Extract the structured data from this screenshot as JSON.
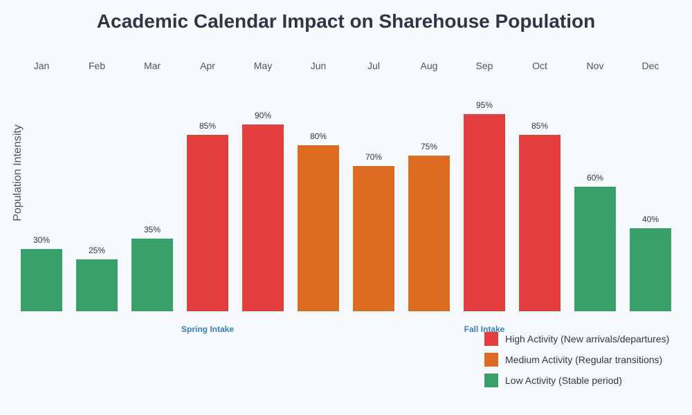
{
  "chart_data": {
    "type": "bar",
    "title": "Academic Calendar Impact on Sharehouse Population",
    "ylabel": "Population Intensity",
    "xlabel": "",
    "ylim": [
      0,
      100
    ],
    "categories": [
      "Jan",
      "Feb",
      "Mar",
      "Apr",
      "May",
      "Jun",
      "Jul",
      "Aug",
      "Sep",
      "Oct",
      "Nov",
      "Dec"
    ],
    "values": [
      30,
      25,
      35,
      85,
      90,
      80,
      70,
      75,
      95,
      85,
      60,
      40
    ],
    "value_labels": [
      "30%",
      "25%",
      "35%",
      "85%",
      "90%",
      "80%",
      "70%",
      "75%",
      "95%",
      "85%",
      "60%",
      "40%"
    ],
    "levels": [
      "low",
      "low",
      "low",
      "high",
      "high",
      "medium",
      "medium",
      "medium",
      "high",
      "high",
      "low",
      "low"
    ],
    "colors": {
      "high": "#e53e3e",
      "medium": "#dd6b20",
      "low": "#38a169"
    },
    "annotations": [
      {
        "text": "Spring Intake",
        "category": "Apr"
      },
      {
        "text": "Fall Intake",
        "category": "Sep"
      }
    ],
    "legend": [
      {
        "level": "high",
        "label": "High Activity (New arrivals/departures)"
      },
      {
        "level": "medium",
        "label": "Medium Activity (Regular transitions)"
      },
      {
        "level": "low",
        "label": "Low Activity (Stable period)"
      }
    ],
    "legend_position": "bottom-right",
    "grid": false
  }
}
